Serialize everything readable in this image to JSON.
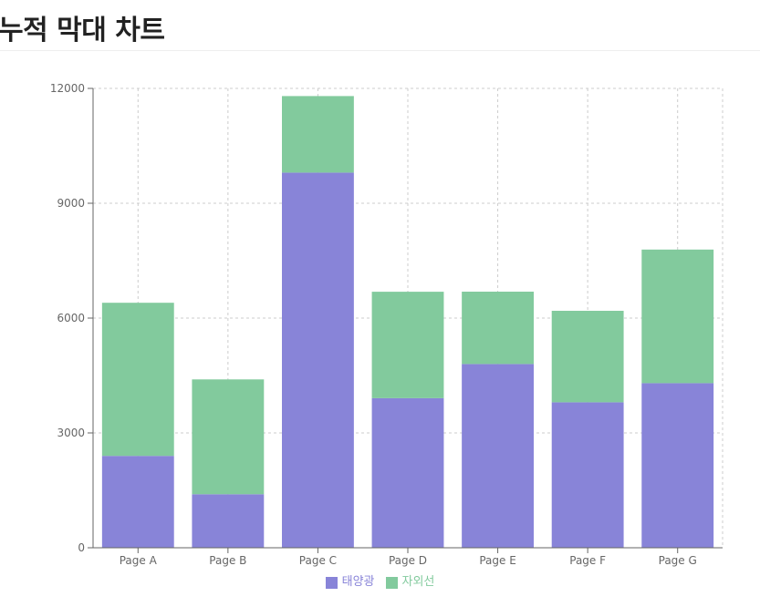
{
  "page": {
    "title": "누적 막대 차트"
  },
  "chart_data": {
    "type": "bar",
    "stacked": true,
    "title": "누적 막대 차트",
    "xlabel": "",
    "ylabel": "",
    "categories": [
      "Page A",
      "Page B",
      "Page C",
      "Page D",
      "Page E",
      "Page F",
      "Page G"
    ],
    "series": [
      {
        "name": "태양광",
        "color": "#8884d8",
        "values": [
          2400,
          1398,
          9800,
          3908,
          4800,
          3800,
          4300
        ]
      },
      {
        "name": "자외선",
        "color": "#82ca9d",
        "values": [
          4000,
          3000,
          2000,
          2780,
          1890,
          2390,
          3490
        ]
      }
    ],
    "ylim": [
      0,
      12000
    ],
    "yticks": [
      "0",
      "3000",
      "6000",
      "9000",
      "12000"
    ],
    "grid": true,
    "grid_style": "dashed",
    "legend_position": "bottom-center"
  }
}
